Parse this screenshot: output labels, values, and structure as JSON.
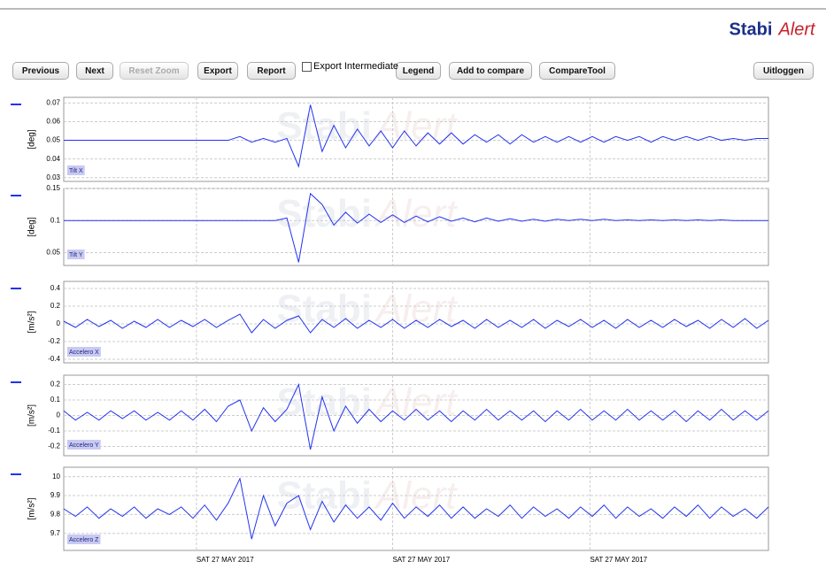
{
  "logo": {
    "left": "Stabi",
    "right": "Alert"
  },
  "toolbar": {
    "buttons": [
      "Previous",
      "Next",
      "Reset Zoom",
      "Export",
      "Report"
    ],
    "checkbox_label": "Export Intermediate",
    "buttons_right": [
      "Legend",
      "Add to compare",
      "CompareTool"
    ],
    "logout": "Uitloggen"
  },
  "chart_data": [
    {
      "type": "line",
      "ylabel": "[deg]",
      "xlim": [
        0,
        60
      ],
      "ylim": [
        0.028,
        0.073
      ],
      "yticks": [
        0.03,
        0.04,
        0.05,
        0.06,
        0.07
      ],
      "grid": true,
      "series": [
        {
          "name": "Tilt X",
          "color": "#2233ee",
          "values": [
            0.05,
            0.05,
            0.05,
            0.05,
            0.05,
            0.05,
            0.05,
            0.05,
            0.05,
            0.05,
            0.05,
            0.05,
            0.05,
            0.05,
            0.05,
            0.052,
            0.049,
            0.051,
            0.049,
            0.051,
            0.036,
            0.069,
            0.044,
            0.058,
            0.046,
            0.056,
            0.047,
            0.055,
            0.046,
            0.055,
            0.047,
            0.054,
            0.048,
            0.054,
            0.048,
            0.053,
            0.049,
            0.053,
            0.048,
            0.053,
            0.049,
            0.052,
            0.049,
            0.052,
            0.049,
            0.052,
            0.049,
            0.052,
            0.05,
            0.052,
            0.049,
            0.052,
            0.05,
            0.052,
            0.05,
            0.052,
            0.05,
            0.051,
            0.05,
            0.051,
            0.051
          ]
        }
      ]
    },
    {
      "type": "line",
      "ylabel": "[deg]",
      "xlim": [
        0,
        60
      ],
      "ylim": [
        0.03,
        0.15
      ],
      "yticks": [
        0.05,
        0.1,
        0.15
      ],
      "grid": true,
      "series": [
        {
          "name": "Tilt Y",
          "color": "#2233ee",
          "values": [
            0.1,
            0.1,
            0.1,
            0.1,
            0.1,
            0.1,
            0.1,
            0.1,
            0.1,
            0.1,
            0.1,
            0.1,
            0.1,
            0.1,
            0.1,
            0.1,
            0.1,
            0.1,
            0.1,
            0.104,
            0.035,
            0.142,
            0.125,
            0.093,
            0.113,
            0.096,
            0.11,
            0.097,
            0.109,
            0.097,
            0.107,
            0.098,
            0.106,
            0.099,
            0.104,
            0.098,
            0.104,
            0.099,
            0.103,
            0.099,
            0.102,
            0.099,
            0.102,
            0.1,
            0.102,
            0.1,
            0.102,
            0.1,
            0.101,
            0.1,
            0.101,
            0.1,
            0.101,
            0.1,
            0.101,
            0.1,
            0.101,
            0.1,
            0.1,
            0.1,
            0.1
          ]
        }
      ]
    },
    {
      "type": "line",
      "ylabel": "[m/s²]",
      "xlim": [
        0,
        60
      ],
      "ylim": [
        -0.44,
        0.48
      ],
      "yticks": [
        -0.4,
        -0.2,
        0,
        0.2,
        0.4
      ],
      "grid": true,
      "series": [
        {
          "name": "Accelero X",
          "color": "#2233ee",
          "values": [
            0.03,
            -0.04,
            0.05,
            -0.03,
            0.04,
            -0.05,
            0.03,
            -0.04,
            0.05,
            -0.04,
            0.04,
            -0.03,
            0.05,
            -0.04,
            0.04,
            0.11,
            -0.1,
            0.05,
            -0.05,
            0.04,
            0.09,
            -0.1,
            0.05,
            -0.04,
            0.06,
            -0.05,
            0.04,
            -0.04,
            0.05,
            -0.05,
            0.04,
            -0.04,
            0.05,
            -0.03,
            0.04,
            -0.05,
            0.05,
            -0.04,
            0.04,
            -0.04,
            0.05,
            -0.05,
            0.04,
            -0.03,
            0.05,
            -0.04,
            0.04,
            -0.05,
            0.05,
            -0.04,
            0.04,
            -0.04,
            0.05,
            -0.03,
            0.04,
            -0.05,
            0.05,
            -0.04,
            0.06,
            -0.05,
            0.04
          ]
        }
      ]
    },
    {
      "type": "line",
      "ylabel": "[m/s²]",
      "xlim": [
        0,
        60
      ],
      "ylim": [
        -0.26,
        0.26
      ],
      "yticks": [
        -0.2,
        -0.1,
        0,
        0.1,
        0.2
      ],
      "grid": true,
      "series": [
        {
          "name": "Accelero Y",
          "color": "#2233ee",
          "values": [
            0.03,
            -0.03,
            0.02,
            -0.03,
            0.03,
            -0.02,
            0.03,
            -0.03,
            0.02,
            -0.03,
            0.03,
            -0.03,
            0.04,
            -0.04,
            0.06,
            0.1,
            -0.1,
            0.05,
            -0.04,
            0.04,
            0.2,
            -0.22,
            0.12,
            -0.1,
            0.06,
            -0.05,
            0.04,
            -0.04,
            0.03,
            -0.03,
            0.04,
            -0.03,
            0.03,
            -0.04,
            0.03,
            -0.03,
            0.04,
            -0.03,
            0.03,
            -0.03,
            0.03,
            -0.04,
            0.03,
            -0.03,
            0.04,
            -0.03,
            0.03,
            -0.03,
            0.04,
            -0.03,
            0.03,
            -0.03,
            0.03,
            -0.04,
            0.03,
            -0.03,
            0.04,
            -0.03,
            0.03,
            -0.03,
            0.03
          ]
        }
      ]
    },
    {
      "type": "line",
      "ylabel": "[m/s²]",
      "xlim": [
        0,
        60
      ],
      "ylim": [
        9.61,
        10.05
      ],
      "yticks": [
        9.7,
        9.8,
        9.9,
        10
      ],
      "grid": true,
      "xticks": [
        {
          "value": 11.3,
          "label": "SAT 27 MAY 2017"
        },
        {
          "value": 28,
          "label": "SAT 27 MAY 2017"
        },
        {
          "value": 44.8,
          "label": "SAT 27 MAY 2017"
        }
      ],
      "series": [
        {
          "name": "Accelero Z",
          "color": "#2233ee",
          "values": [
            9.83,
            9.79,
            9.84,
            9.78,
            9.83,
            9.79,
            9.84,
            9.78,
            9.83,
            9.8,
            9.84,
            9.78,
            9.85,
            9.77,
            9.86,
            9.99,
            9.67,
            9.9,
            9.74,
            9.86,
            9.9,
            9.72,
            9.87,
            9.76,
            9.85,
            9.78,
            9.84,
            9.77,
            9.86,
            9.78,
            9.84,
            9.79,
            9.85,
            9.78,
            9.84,
            9.78,
            9.83,
            9.79,
            9.85,
            9.78,
            9.84,
            9.79,
            9.83,
            9.78,
            9.84,
            9.79,
            9.85,
            9.78,
            9.84,
            9.79,
            9.83,
            9.78,
            9.84,
            9.79,
            9.85,
            9.78,
            9.84,
            9.79,
            9.83,
            9.78,
            9.84
          ]
        }
      ]
    }
  ]
}
